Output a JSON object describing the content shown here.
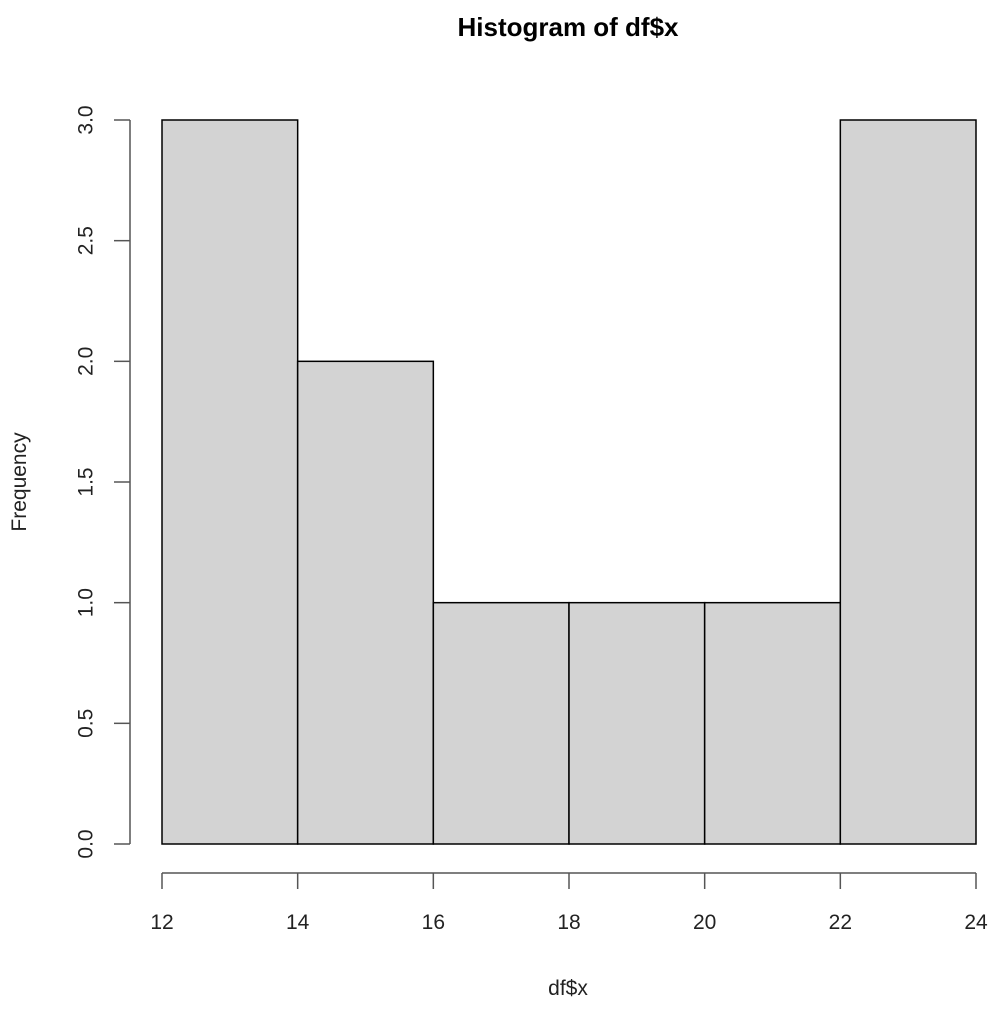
{
  "chart_data": {
    "type": "bar",
    "subtype": "histogram",
    "title": "Histogram of df$x",
    "xlabel": "df$x",
    "ylabel": "Frequency",
    "bins": [
      {
        "from": 12,
        "to": 14,
        "count": 3
      },
      {
        "from": 14,
        "to": 16,
        "count": 2
      },
      {
        "from": 16,
        "to": 18,
        "count": 1
      },
      {
        "from": 18,
        "to": 20,
        "count": 1
      },
      {
        "from": 20,
        "to": 22,
        "count": 1
      },
      {
        "from": 22,
        "to": 24,
        "count": 3
      }
    ],
    "categories": [
      "12-14",
      "14-16",
      "16-18",
      "18-20",
      "20-22",
      "22-24"
    ],
    "values": [
      3,
      2,
      1,
      1,
      1,
      3
    ],
    "xlim": [
      12,
      24
    ],
    "ylim": [
      0,
      3
    ],
    "x_ticks": [
      "12",
      "14",
      "16",
      "18",
      "20",
      "22",
      "24"
    ],
    "y_ticks": [
      "0.0",
      "0.5",
      "1.0",
      "1.5",
      "2.0",
      "2.5",
      "3.0"
    ],
    "grid": false,
    "legend": null,
    "colors": {
      "bar_fill": "#d3d3d3",
      "bar_stroke": "#000000",
      "axis": "#555555"
    }
  }
}
